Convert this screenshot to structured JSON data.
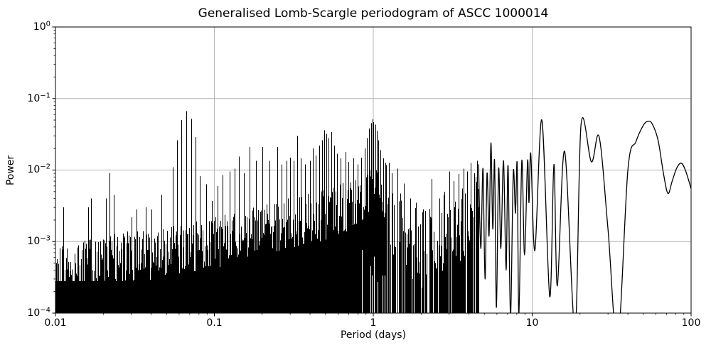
{
  "chart_data": {
    "type": "line",
    "title": "Generalised Lomb-Scargle periodogram of ASCC 1000014",
    "xlabel": "Period (days)",
    "ylabel": "Power",
    "xscale": "log",
    "yscale": "log",
    "xlim": [
      0.01,
      100
    ],
    "ylim": [
      0.0001,
      1
    ],
    "grid": "major-decades",
    "legend": "none",
    "line_color": "#000000",
    "grid_color": "#b0b0b0",
    "background_color": "#ffffff",
    "x_tick_labels": [
      "0.01",
      "0.1",
      "1",
      "10",
      "100"
    ],
    "y_tick_labels": [
      {
        "base": "10",
        "exp": "0"
      },
      {
        "base": "10",
        "exp": "−1"
      },
      {
        "base": "10",
        "exp": "−2"
      },
      {
        "base": "10",
        "exp": "−3"
      },
      {
        "base": "10",
        "exp": "−4"
      }
    ],
    "series": {
      "dense_noise_region": {
        "period_range": [
          0.01,
          1.2
        ],
        "fill_from_power": 0.0001,
        "upper_envelope": [
          [
            0.01,
            0.00055
          ],
          [
            0.013,
            0.00065
          ],
          [
            0.018,
            0.0008
          ],
          [
            0.025,
            0.0009
          ],
          [
            0.035,
            0.001
          ],
          [
            0.05,
            0.0011
          ],
          [
            0.07,
            0.0013
          ],
          [
            0.1,
            0.0015
          ],
          [
            0.14,
            0.0018
          ],
          [
            0.2,
            0.0022
          ],
          [
            0.3,
            0.0028
          ],
          [
            0.45,
            0.0035
          ],
          [
            0.6,
            0.0042
          ],
          [
            0.8,
            0.0055
          ],
          [
            0.95,
            0.009
          ],
          [
            1.02,
            0.011
          ],
          [
            1.1,
            0.008
          ],
          [
            1.2,
            0.006
          ]
        ]
      },
      "alias_peaks": [
        [
          0.0112,
          0.003
        ],
        [
          0.016,
          0.003
        ],
        [
          0.0168,
          0.004
        ],
        [
          0.0208,
          0.004
        ],
        [
          0.0219,
          0.009
        ],
        [
          0.0232,
          0.0045
        ],
        [
          0.03,
          0.0022
        ],
        [
          0.0325,
          0.0028
        ],
        [
          0.037,
          0.003
        ],
        [
          0.04,
          0.0028
        ],
        [
          0.0465,
          0.0045
        ],
        [
          0.0545,
          0.011
        ],
        [
          0.0585,
          0.026
        ],
        [
          0.0622,
          0.05
        ],
        [
          0.0669,
          0.067
        ],
        [
          0.0712,
          0.052
        ],
        [
          0.0765,
          0.029
        ],
        [
          0.0813,
          0.0082
        ],
        [
          0.0888,
          0.0063
        ],
        [
          0.096,
          0.0037
        ],
        [
          0.105,
          0.006
        ],
        [
          0.113,
          0.0085
        ],
        [
          0.125,
          0.0095
        ],
        [
          0.1335,
          0.0105
        ],
        [
          0.143,
          0.0155
        ],
        [
          0.154,
          0.009
        ],
        [
          0.1665,
          0.021
        ],
        [
          0.182,
          0.0135
        ],
        [
          0.2,
          0.021
        ],
        [
          0.222,
          0.0135
        ],
        [
          0.25,
          0.021
        ],
        [
          0.266,
          0.012
        ],
        [
          0.286,
          0.0135
        ],
        [
          0.301,
          0.015
        ],
        [
          0.317,
          0.0135
        ],
        [
          0.333,
          0.03
        ],
        [
          0.35,
          0.0145
        ],
        [
          0.371,
          0.012
        ],
        [
          0.4,
          0.0135
        ],
        [
          0.417,
          0.02
        ],
        [
          0.435,
          0.016
        ],
        [
          0.455,
          0.022
        ],
        [
          0.475,
          0.026
        ],
        [
          0.49,
          0.036
        ],
        [
          0.505,
          0.032
        ],
        [
          0.525,
          0.028
        ],
        [
          0.545,
          0.034
        ],
        [
          0.565,
          0.022
        ],
        [
          0.59,
          0.017
        ],
        [
          0.625,
          0.0145
        ],
        [
          0.666,
          0.018
        ],
        [
          0.7,
          0.013
        ],
        [
          0.75,
          0.0145
        ],
        [
          0.8,
          0.012
        ],
        [
          0.84,
          0.015
        ],
        [
          0.88,
          0.02
        ],
        [
          0.91,
          0.028
        ],
        [
          0.94,
          0.038
        ],
        [
          0.965,
          0.045
        ],
        [
          0.985,
          0.051
        ],
        [
          1.005,
          0.047
        ],
        [
          1.03,
          0.043
        ],
        [
          1.055,
          0.035
        ],
        [
          1.08,
          0.026
        ],
        [
          1.11,
          0.019
        ],
        [
          1.15,
          0.0145
        ],
        [
          1.19,
          0.0125
        ]
      ],
      "sparse_spike_region": {
        "period_range": [
          1.2,
          4.6
        ],
        "gap_fraction": 0.25,
        "upper_envelope": [
          [
            1.2,
            0.006
          ],
          [
            1.5,
            0.0035
          ],
          [
            1.9,
            0.0015
          ],
          [
            2.4,
            0.0018
          ],
          [
            3.0,
            0.0025
          ],
          [
            3.6,
            0.004
          ],
          [
            4.3,
            0.006
          ],
          [
            4.6,
            0.007
          ]
        ]
      },
      "sparse_peaks": [
        [
          1.25,
          0.0125
        ],
        [
          1.31,
          0.009
        ],
        [
          1.42,
          0.0105
        ],
        [
          1.55,
          0.0065
        ],
        [
          1.7,
          0.004
        ],
        [
          1.85,
          0.0035
        ],
        [
          2.05,
          0.0028
        ],
        [
          2.33,
          0.0075
        ],
        [
          2.6,
          0.004
        ],
        [
          2.8,
          0.005
        ],
        [
          3.0,
          0.0095
        ],
        [
          3.2,
          0.007
        ],
        [
          3.45,
          0.0088
        ],
        [
          3.7,
          0.0105
        ],
        [
          3.9,
          0.0095
        ],
        [
          4.1,
          0.0125
        ],
        [
          4.3,
          0.009
        ],
        [
          4.5,
          0.0135
        ]
      ],
      "smooth_curve": [
        [
          4.6,
          0.012
        ],
        [
          4.75,
          0.0008
        ],
        [
          4.9,
          0.0105
        ],
        [
          5.05,
          0.0003
        ],
        [
          5.2,
          0.009
        ],
        [
          5.35,
          0.0012
        ],
        [
          5.5,
          0.024
        ],
        [
          5.65,
          0.0015
        ],
        [
          5.8,
          0.0135
        ],
        [
          5.95,
          0.00012
        ],
        [
          6.15,
          0.0105
        ],
        [
          6.35,
          0.0008
        ],
        [
          6.6,
          0.0135
        ],
        [
          6.85,
          0.0004
        ],
        [
          7.05,
          0.0115
        ],
        [
          7.3,
          9e-05
        ],
        [
          7.6,
          0.0092
        ],
        [
          7.85,
          0.0025
        ],
        [
          8.05,
          0.012
        ],
        [
          8.25,
          9e-05
        ],
        [
          8.6,
          0.0135
        ],
        [
          8.95,
          0.00065
        ],
        [
          9.35,
          0.0135
        ],
        [
          9.55,
          0.0035
        ],
        [
          9.8,
          0.017
        ],
        [
          10.4,
          0.00075
        ],
        [
          11.5,
          0.05
        ],
        [
          12.9,
          0.00017
        ],
        [
          13.7,
          0.012
        ],
        [
          14.4,
          0.00024
        ],
        [
          16.0,
          0.0183
        ],
        [
          18.6,
          6e-05
        ],
        [
          20.3,
          0.043
        ],
        [
          23.6,
          0.013
        ],
        [
          26.4,
          0.029
        ],
        [
          30.0,
          0.0015
        ],
        [
          34.5,
          4e-05
        ],
        [
          40.0,
          0.01
        ],
        [
          45.0,
          0.025
        ],
        [
          50.0,
          0.042
        ],
        [
          53.5,
          0.048
        ],
        [
          57.0,
          0.044
        ],
        [
          62.0,
          0.026
        ],
        [
          67.0,
          0.009
        ],
        [
          71.5,
          0.0047
        ],
        [
          76.0,
          0.007
        ],
        [
          81.0,
          0.0105
        ],
        [
          86.5,
          0.0125
        ],
        [
          92.0,
          0.01
        ],
        [
          100.0,
          0.0055
        ]
      ]
    }
  }
}
